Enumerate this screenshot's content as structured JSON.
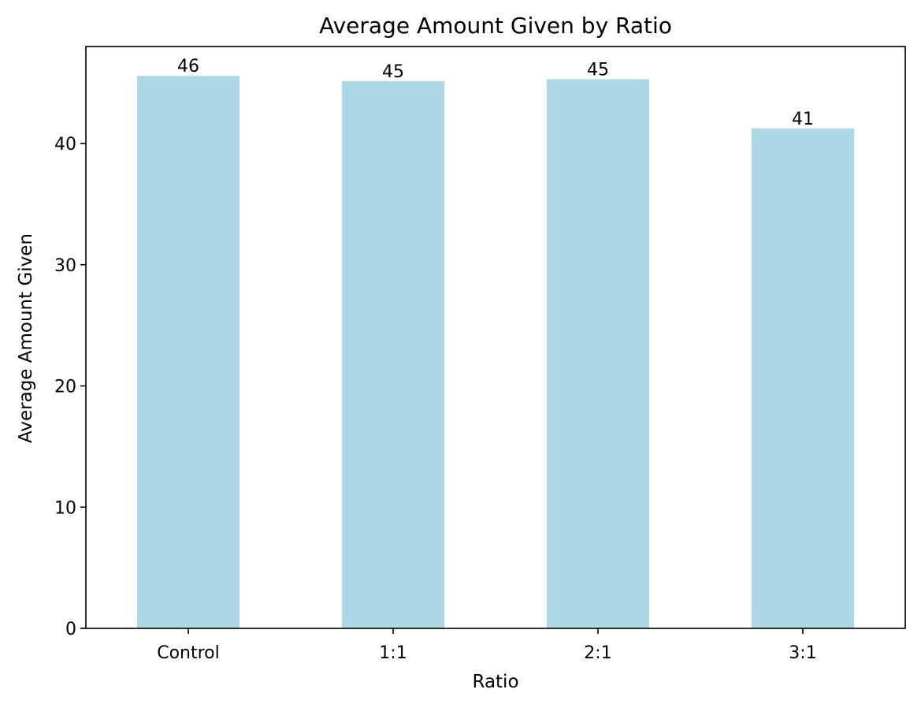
{
  "chart_data": {
    "type": "bar",
    "title": "Average Amount Given by Ratio",
    "xlabel": "Ratio",
    "ylabel": "Average Amount Given",
    "categories": [
      "Control",
      "1:1",
      "2:1",
      "3:1"
    ],
    "values": [
      45.58,
      45.14,
      45.31,
      41.25
    ],
    "data_labels": [
      "46",
      "45",
      "45",
      "41"
    ],
    "ylim": [
      0,
      48
    ],
    "yticks": [
      0,
      10,
      20,
      30,
      40
    ],
    "grid": false,
    "legend": "none",
    "bar_color": "#add8e6",
    "axis_color": "#000000"
  }
}
